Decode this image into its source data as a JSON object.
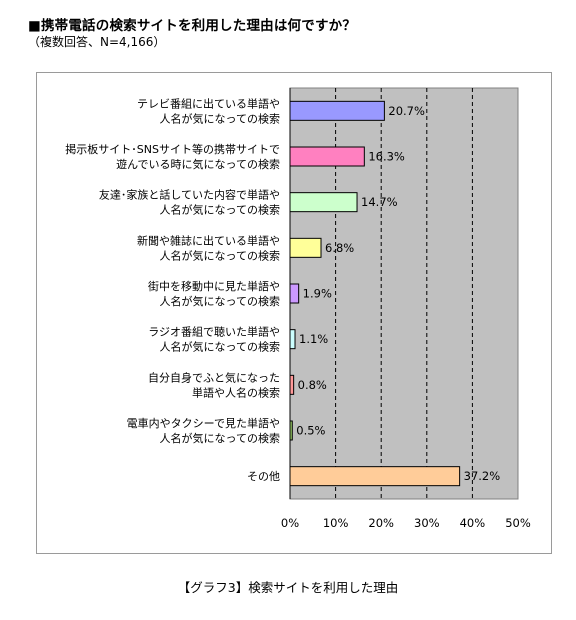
{
  "title": "■携帯電話の検索サイトを利用した理由は何ですか？",
  "subtitle": "（複数回答、N=4,166）",
  "caption": "【グラフ3】検索サイトを利用した理由",
  "chart_data": {
    "type": "bar",
    "orientation": "horizontal",
    "categories": [
      [
        "テレビ番組に出ている単語や",
        "人名が気になっての検索"
      ],
      [
        "掲示板サイト･SNSサイト等の携帯サイトで",
        "遊んでいる時に気になっての検索"
      ],
      [
        "友達･家族と話していた内容で単語や",
        "人名が気になっての検索"
      ],
      [
        "新聞や雑誌に出ている単語や",
        "人名が気になっての検索"
      ],
      [
        "街中を移動中に見た単語や",
        "人名が気になっての検索"
      ],
      [
        "ラジオ番組で聴いた単語や",
        "人名が気になっての検索"
      ],
      [
        "自分自身でふと気になった",
        "単語や人名の検索"
      ],
      [
        "電車内やタクシーで見た単語や",
        "人名が気になっての検索"
      ],
      [
        "その他"
      ]
    ],
    "values": [
      20.7,
      16.3,
      14.7,
      6.8,
      1.9,
      1.1,
      0.8,
      0.5,
      37.2
    ],
    "value_labels": [
      "20.7%",
      "16.3%",
      "14.7%",
      "6.8%",
      "1.9%",
      "1.1%",
      "0.8%",
      "0.5%",
      "37.2%"
    ],
    "bar_colors": [
      "#9999ff",
      "#ff80c0",
      "#ccffcc",
      "#ffff99",
      "#cc99ff",
      "#ccffff",
      "#ff9999",
      "#99cc66",
      "#ffcc99"
    ],
    "xlim": [
      0,
      50
    ],
    "xticks": [
      "0%",
      "10%",
      "20%",
      "30%",
      "40%",
      "50%"
    ],
    "plot_background": "#c0c0c0",
    "grid": "vertical-dashed",
    "legend": "none"
  }
}
